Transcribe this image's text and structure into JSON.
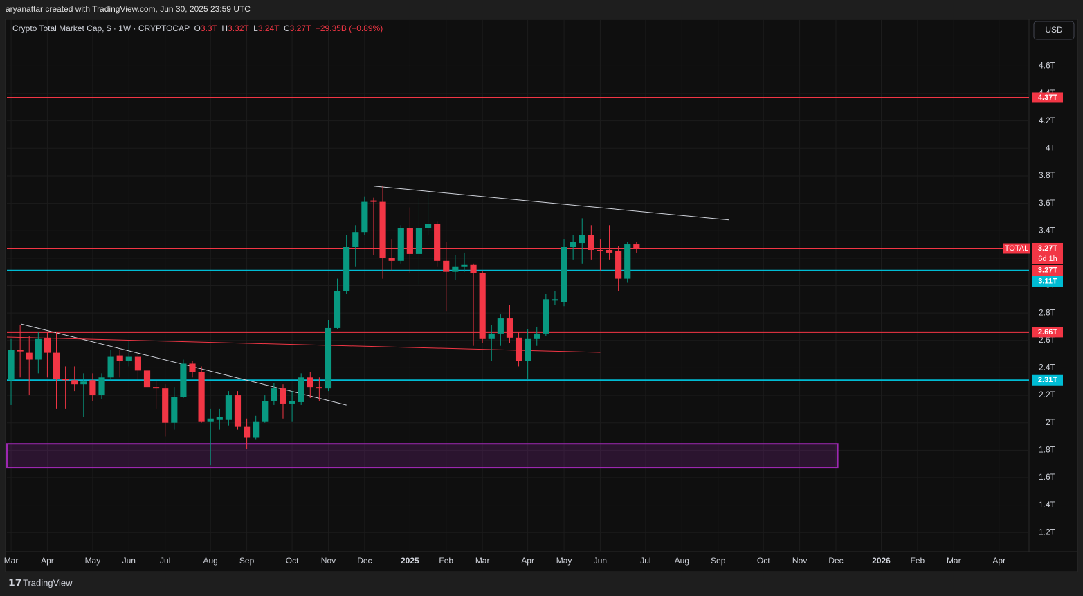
{
  "header": {
    "credit": "aryanattar created with TradingView.com, Jun 30, 2025 23:59 UTC"
  },
  "footer": {
    "brand": "TradingView"
  },
  "chart_data": {
    "type": "candlestick",
    "title": "Crypto Total Market Cap, $ · 1W · CRYPTOCAP",
    "legend_ohlc": [
      {
        "key": "O",
        "label": "3.3T"
      },
      {
        "key": "H",
        "label": "3.32T"
      },
      {
        "key": "L",
        "label": "3.24T"
      },
      {
        "key": "C",
        "label": "3.27T"
      }
    ],
    "change": "−29.35B (−0.89%)",
    "currency": "USD",
    "xlim": [
      -0.46,
      112.3
    ],
    "xticks": [
      {
        "value": 0,
        "label": "Mar"
      },
      {
        "value": 4,
        "label": "Apr"
      },
      {
        "value": 9,
        "label": "May"
      },
      {
        "value": 13,
        "label": "Jun"
      },
      {
        "value": 17,
        "label": "Jul"
      },
      {
        "value": 22,
        "label": "Aug"
      },
      {
        "value": 26,
        "label": "Sep"
      },
      {
        "value": 31,
        "label": "Oct"
      },
      {
        "value": 35,
        "label": "Nov"
      },
      {
        "value": 39,
        "label": "Dec"
      },
      {
        "value": 44,
        "label": "2025"
      },
      {
        "value": 48,
        "label": "Feb"
      },
      {
        "value": 52,
        "label": "Mar"
      },
      {
        "value": 57,
        "label": "Apr"
      },
      {
        "value": 61,
        "label": "May"
      },
      {
        "value": 65,
        "label": "Jun"
      },
      {
        "value": 70,
        "label": "Jul"
      },
      {
        "value": 74,
        "label": "Aug"
      },
      {
        "value": 78,
        "label": "Sep"
      },
      {
        "value": 83,
        "label": "Oct"
      },
      {
        "value": 87,
        "label": "Nov"
      },
      {
        "value": 91,
        "label": "Dec"
      },
      {
        "value": 96,
        "label": "2026"
      },
      {
        "value": 100,
        "label": "Feb"
      },
      {
        "value": 104,
        "label": "Mar"
      },
      {
        "value": 109,
        "label": "Apr"
      }
    ],
    "ylim": [
      1.06,
      4.94
    ],
    "yticks": [
      {
        "value": 1.2,
        "label": "1.2T"
      },
      {
        "value": 1.4,
        "label": "1.4T"
      },
      {
        "value": 1.6,
        "label": "1.6T"
      },
      {
        "value": 1.8,
        "label": "1.8T"
      },
      {
        "value": 2,
        "label": "2T"
      },
      {
        "value": 2.2,
        "label": "2.2T"
      },
      {
        "value": 2.4,
        "label": "2.4T"
      },
      {
        "value": 2.6,
        "label": "2.6T"
      },
      {
        "value": 2.8,
        "label": "2.8T"
      },
      {
        "value": 3,
        "label": "3T"
      },
      {
        "value": 3.2,
        "label": "3.2T"
      },
      {
        "value": 3.4,
        "label": "3.4T"
      },
      {
        "value": 3.6,
        "label": "3.6T"
      },
      {
        "value": 3.8,
        "label": "3.8T"
      },
      {
        "value": 4,
        "label": "4T"
      },
      {
        "value": 4.2,
        "label": "4.2T"
      },
      {
        "value": 4.4,
        "label": "4.4T"
      },
      {
        "value": 4.6,
        "label": "4.6T"
      }
    ],
    "grid": true,
    "up_color": "#089981",
    "down_color": "#f23645",
    "x": [
      0,
      1,
      2,
      3,
      4,
      5,
      6,
      7,
      8,
      9,
      10,
      11,
      12,
      13,
      14,
      15,
      16,
      17,
      18,
      19,
      20,
      21,
      22,
      23,
      24,
      25,
      26,
      27,
      28,
      29,
      30,
      31,
      32,
      33,
      34,
      35,
      36,
      37,
      38,
      39,
      40,
      41,
      42,
      43,
      44,
      45,
      46,
      47,
      48,
      49,
      50,
      51,
      52,
      53,
      54,
      55,
      56,
      57,
      58,
      59,
      60,
      61,
      62,
      63,
      64,
      65,
      66,
      67,
      68,
      69
    ],
    "open": [
      2.31,
      2.53,
      2.51,
      2.46,
      2.62,
      2.51,
      2.32,
      2.31,
      2.28,
      2.31,
      2.2,
      2.33,
      2.49,
      2.45,
      2.48,
      2.38,
      2.26,
      2.25,
      2.0,
      2.19,
      2.43,
      2.37,
      2.01,
      2.02,
      2.02,
      2.2,
      1.97,
      1.89,
      2.01,
      2.16,
      2.25,
      2.14,
      2.15,
      2.33,
      2.26,
      2.25,
      2.69,
      2.96,
      3.28,
      3.39,
      3.62,
      3.61,
      3.2,
      3.18,
      3.42,
      3.23,
      3.42,
      3.45,
      3.18,
      3.1,
      3.14,
      3.15,
      3.09,
      2.61,
      2.65,
      2.76,
      2.62,
      2.45,
      2.61,
      2.65,
      2.89,
      2.88,
      3.28,
      3.31,
      3.37,
      3.26,
      3.26,
      3.25,
      3.05,
      3.3
    ],
    "high": [
      2.61,
      2.71,
      2.63,
      2.66,
      2.66,
      2.66,
      2.41,
      2.41,
      2.36,
      2.36,
      2.36,
      2.53,
      2.53,
      2.6,
      2.51,
      2.41,
      2.31,
      2.28,
      2.26,
      2.46,
      2.45,
      2.41,
      2.1,
      2.1,
      2.23,
      2.23,
      2.03,
      2.05,
      2.2,
      2.29,
      2.28,
      2.23,
      2.36,
      2.37,
      2.33,
      2.75,
      3.05,
      3.37,
      3.44,
      3.65,
      3.64,
      3.73,
      3.34,
      3.44,
      3.57,
      3.64,
      3.68,
      3.47,
      3.32,
      3.22,
      3.24,
      3.16,
      3.11,
      2.71,
      2.79,
      2.86,
      2.66,
      2.68,
      2.7,
      2.94,
      2.96,
      3.34,
      3.37,
      3.49,
      3.44,
      3.34,
      3.44,
      3.29,
      3.32,
      3.32
    ],
    "low": [
      2.13,
      2.33,
      2.2,
      2.36,
      2.33,
      2.1,
      2.1,
      2.23,
      2.04,
      2.16,
      2.17,
      2.31,
      2.33,
      2.41,
      2.31,
      2.23,
      2.1,
      1.9,
      1.95,
      2.18,
      2.33,
      2.0,
      1.69,
      1.95,
      1.98,
      1.95,
      1.81,
      1.88,
      2.0,
      2.13,
      2.03,
      2.01,
      2.13,
      2.18,
      2.16,
      2.23,
      2.68,
      2.94,
      3.14,
      3.37,
      3.22,
      3.05,
      3.11,
      3.16,
      3.09,
      3.01,
      3.37,
      3.14,
      2.81,
      3.04,
      3.1,
      2.56,
      2.58,
      2.45,
      2.56,
      2.58,
      2.41,
      2.32,
      2.56,
      2.63,
      2.86,
      2.85,
      3.19,
      3.16,
      3.19,
      3.11,
      3.19,
      2.96,
      3.02,
      3.24
    ],
    "close": [
      2.53,
      2.52,
      2.46,
      2.61,
      2.51,
      2.32,
      2.31,
      2.28,
      2.3,
      2.2,
      2.33,
      2.48,
      2.45,
      2.48,
      2.38,
      2.26,
      2.25,
      2.0,
      2.19,
      2.43,
      2.37,
      2.01,
      2.03,
      2.04,
      2.2,
      1.97,
      1.89,
      2.01,
      2.16,
      2.25,
      2.14,
      2.16,
      2.33,
      2.26,
      2.25,
      2.69,
      2.96,
      3.28,
      3.39,
      3.61,
      3.61,
      3.2,
      3.18,
      3.42,
      3.23,
      3.42,
      3.45,
      3.18,
      3.1,
      3.14,
      3.15,
      3.09,
      2.61,
      2.65,
      2.76,
      2.62,
      2.45,
      2.61,
      2.65,
      2.9,
      2.9,
      3.28,
      3.32,
      3.37,
      3.26,
      3.25,
      3.24,
      3.05,
      3.3,
      3.27
    ],
    "levels": [
      {
        "value": 4.37,
        "label": "4.37T",
        "color": "#f23645"
      },
      {
        "value": 3.27,
        "label": "3.27T",
        "color": "#f23645"
      },
      {
        "value": 3.11,
        "label": "3.11T",
        "color": "#00bcd4"
      },
      {
        "value": 2.66,
        "label": "2.66T",
        "color": "#f23645"
      },
      {
        "value": 2.31,
        "label": "2.31T",
        "color": "#00bcd4"
      }
    ],
    "last": {
      "name": "TOTAL",
      "value": 3.27,
      "label": "3.27T",
      "countdown": "6d 1h",
      "color": "#f23645"
    },
    "trendlines": [
      {
        "color": "#d1d4dc",
        "x": [
          40,
          79.2
        ],
        "y": [
          3.725,
          3.478
        ]
      },
      {
        "color": "#d1d4dc",
        "x": [
          1.07,
          37
        ],
        "y": [
          2.72,
          2.129
        ]
      },
      {
        "color": "#f23645",
        "x": [
          -0.46,
          65
        ],
        "y": [
          2.624,
          2.513
        ]
      }
    ],
    "zones": [
      {
        "color": "#9c27b0",
        "x": [
          -0.46,
          91.2
        ],
        "y": [
          1.675,
          1.846
        ]
      }
    ]
  }
}
